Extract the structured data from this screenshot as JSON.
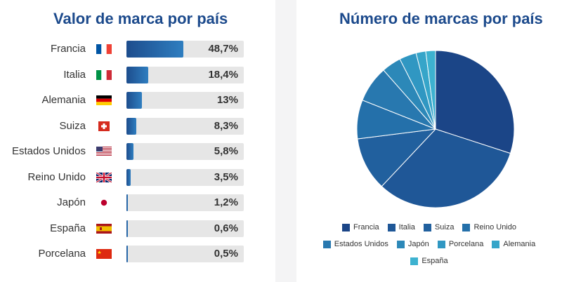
{
  "chart_data": [
    {
      "type": "bar",
      "orientation": "horizontal",
      "title": "Valor de marca por país",
      "unit": "%",
      "xlim": [
        0,
        100
      ],
      "categories": [
        "Francia",
        "Italia",
        "Alemania",
        "Suiza",
        "Estados Unidos",
        "Reino Unido",
        "Japón",
        "España",
        "Porcelana"
      ],
      "values": [
        48.7,
        18.4,
        13,
        8.3,
        5.8,
        3.5,
        1.2,
        0.6,
        0.5
      ],
      "value_labels": [
        "48,7%",
        "18,4%",
        "13%",
        "8,3%",
        "5,8%",
        "3,5%",
        "1,2%",
        "0,6%",
        "0,5%"
      ],
      "flag_icons": [
        "france-flag-icon",
        "italy-flag-icon",
        "germany-flag-icon",
        "switzerland-flag-icon",
        "usa-flag-icon",
        "uk-flag-icon",
        "japan-flag-icon",
        "spain-flag-icon",
        "china-flag-icon"
      ]
    },
    {
      "type": "pie",
      "title": "Número de marcas por país",
      "legend_position": "bottom",
      "series": [
        {
          "name": "Francia",
          "value": 30,
          "color": "#1b4587"
        },
        {
          "name": "Italia",
          "value": 32,
          "color": "#1f5797"
        },
        {
          "name": "Suiza",
          "value": 11,
          "color": "#21609e"
        },
        {
          "name": "Reino Unido",
          "value": 8,
          "color": "#2470aa"
        },
        {
          "name": "Estados Unidos",
          "value": 7.5,
          "color": "#2878af"
        },
        {
          "name": "Japón",
          "value": 4,
          "color": "#2c88b8"
        },
        {
          "name": "Porcelana",
          "value": 3.5,
          "color": "#3097c2"
        },
        {
          "name": "Alemania",
          "value": 2,
          "color": "#36a5c9"
        },
        {
          "name": "España",
          "value": 2,
          "color": "#3db2d0"
        }
      ]
    }
  ]
}
